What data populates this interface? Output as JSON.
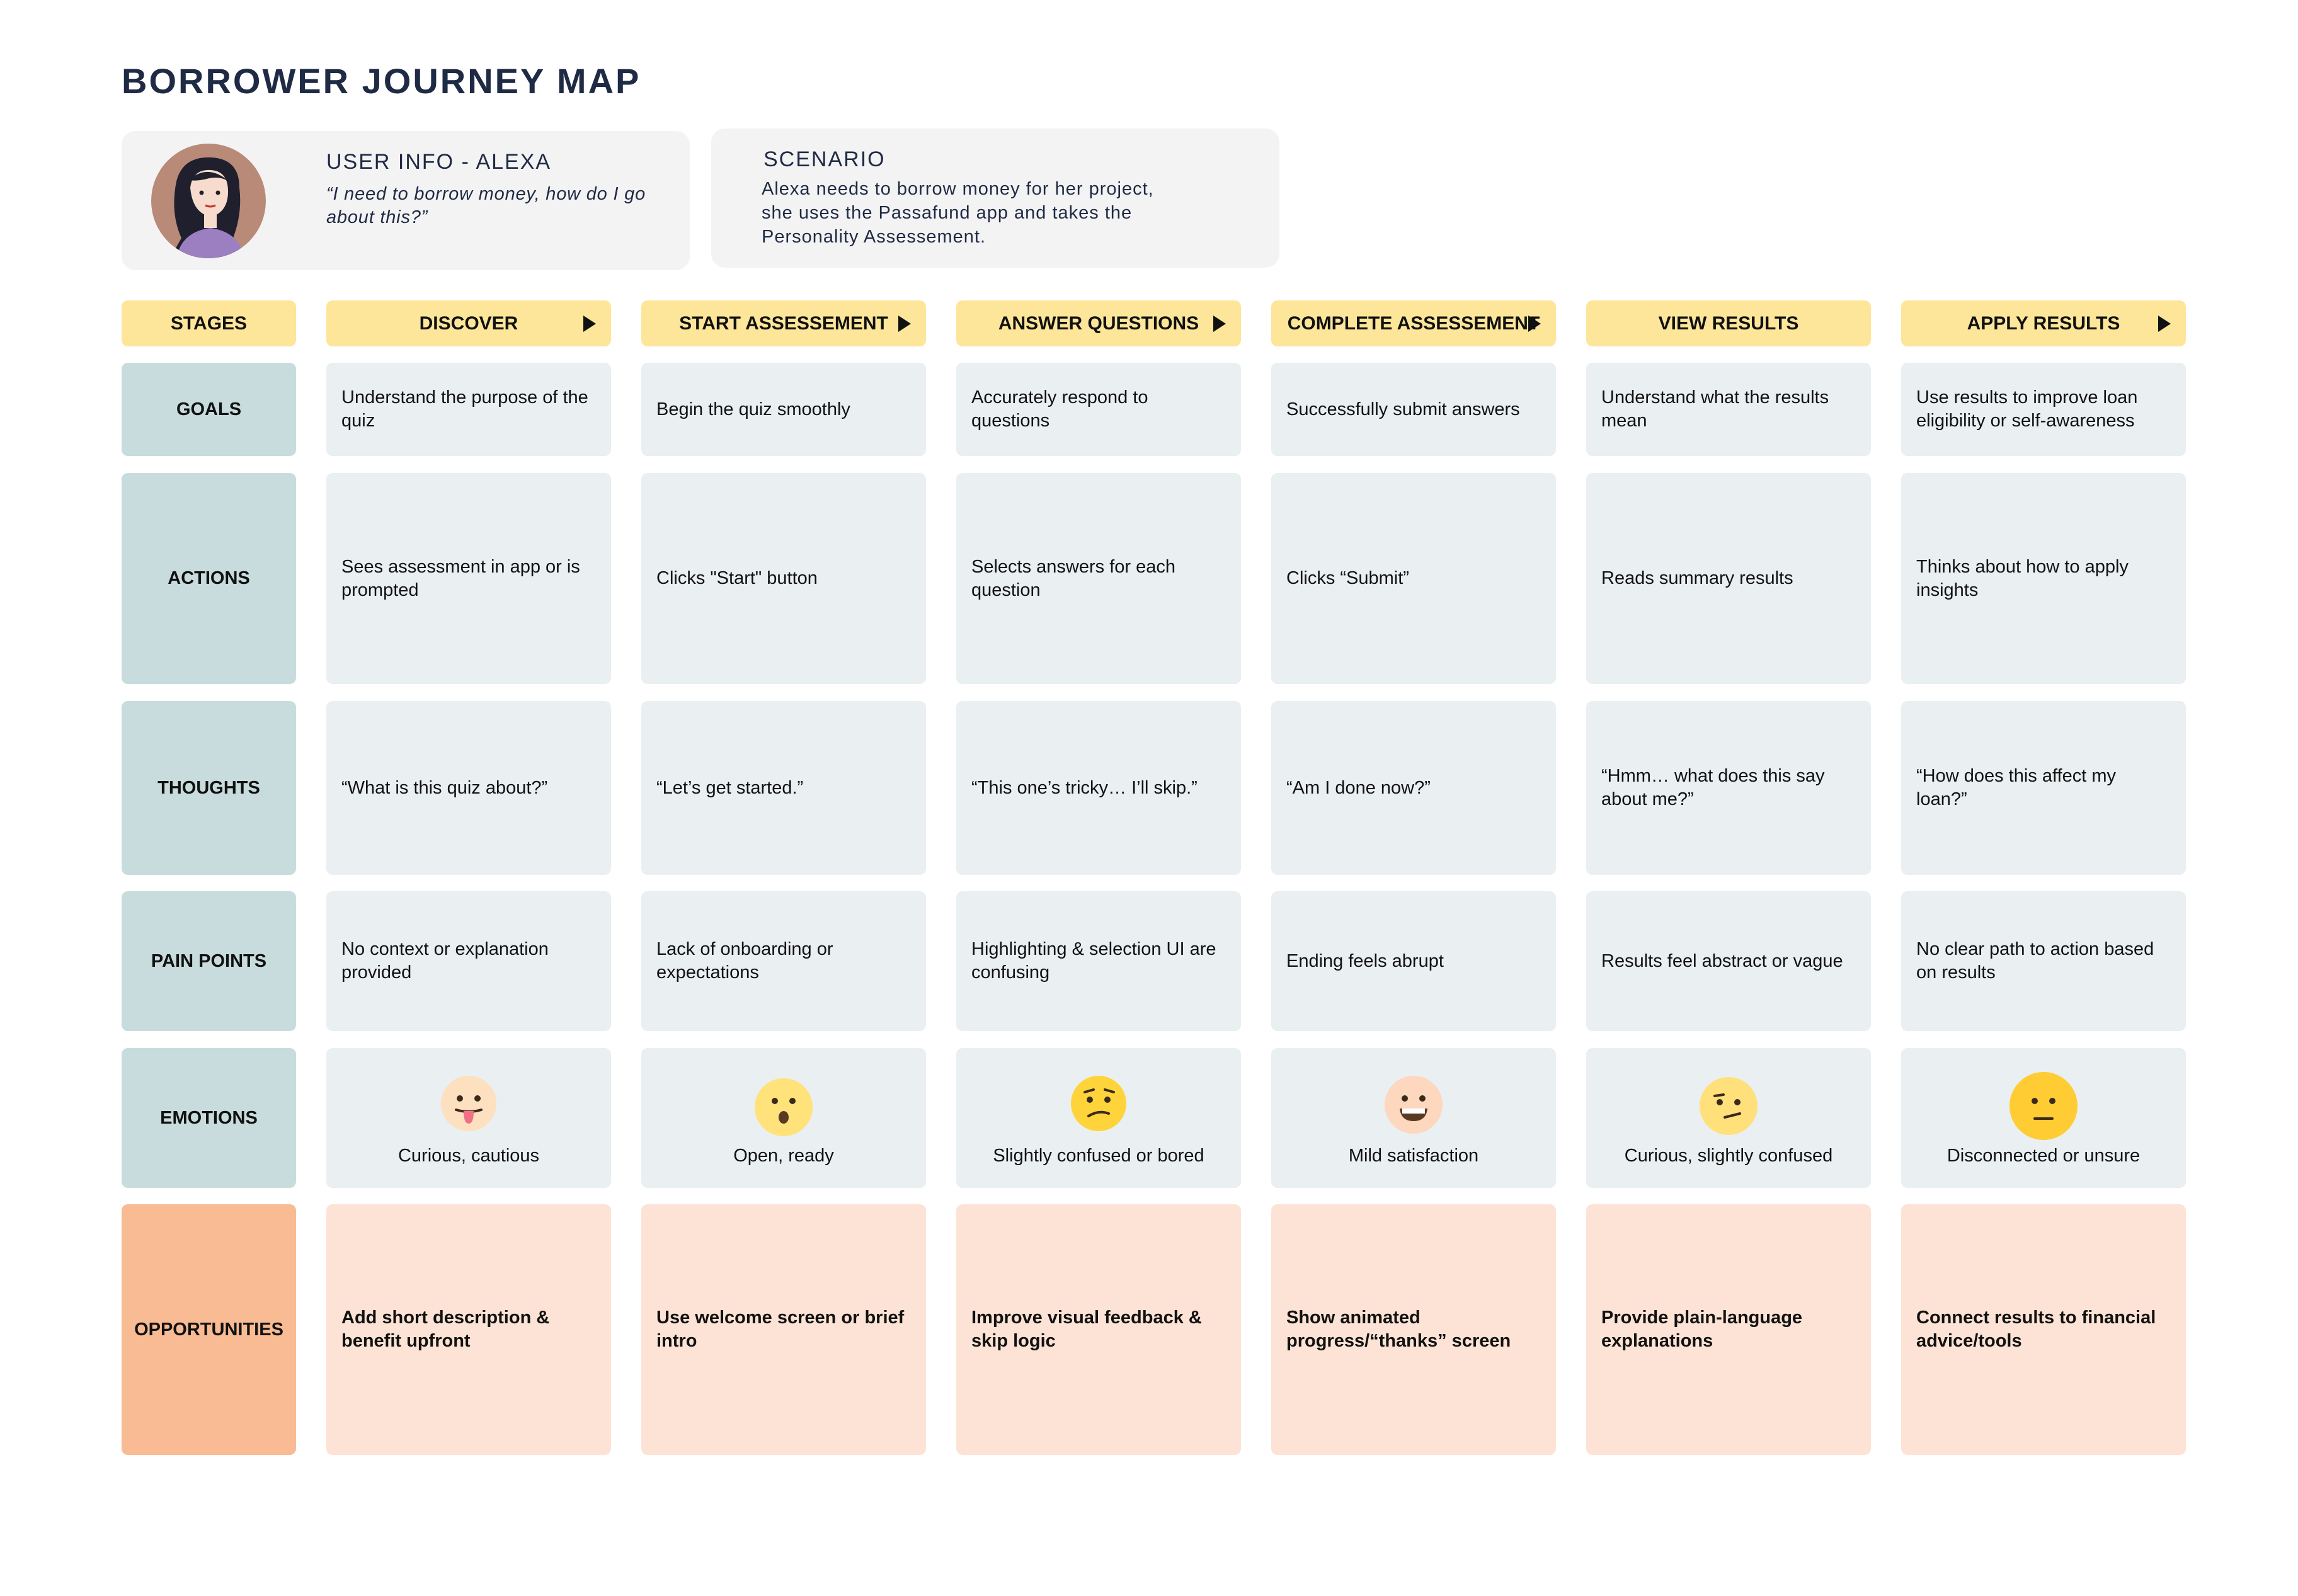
{
  "title": "BORROWER JOURNEY MAP",
  "user_info": {
    "heading": "USER INFO - ALEXA",
    "quote": "“I need to borrow money, how do I go about this?”"
  },
  "scenario": {
    "heading": "SCENARIO",
    "text": "Alexa needs to borrow money for her project, she uses the Passafund app and takes the Personality Assessement."
  },
  "stages_label": "STAGES",
  "stages": [
    "DISCOVER",
    "START ASSESSEMENT",
    "ANSWER QUESTIONS",
    "COMPLETE ASSESSEMENT",
    "VIEW RESULTS",
    "APPLY RESULTS"
  ],
  "row_labels": {
    "goals": "GOALS",
    "actions": "ACTIONS",
    "thoughts": "THOUGHTS",
    "pain_points": "PAIN POINTS",
    "emotions": "EMOTIONS",
    "opportunities": "OPPORTUNITIES"
  },
  "goals": [
    "Understand the purpose of the quiz",
    "Begin the quiz smoothly",
    "Accurately respond to questions",
    "Successfully submit answers",
    "Understand what the results mean",
    "Use results to improve loan eligibility or self-awareness"
  ],
  "actions": [
    "Sees assessment in app or is prompted",
    "Clicks \"Start\" button",
    "Selects answers for each question",
    "Clicks “Submit”",
    "Reads summary results",
    "Thinks about how to apply insights"
  ],
  "thoughts": [
    "“What is this quiz about?”",
    "“Let’s get started.”",
    "“This one’s tricky… I’ll skip.”",
    "“Am I done now?”",
    "“Hmm… what does this say about me?”",
    "“How does this affect my loan?”"
  ],
  "pain_points": [
    "No context or explanation provided",
    "Lack of onboarding or expectations",
    "Highlighting & selection UI are confusing",
    "Ending feels abrupt",
    "Results feel abstract or vague",
    "No clear path to action based on results"
  ],
  "emotions": [
    {
      "label": "Curious, cautious",
      "icon": "tongue-out-emoji-icon",
      "color": "#fde0bf"
    },
    {
      "label": "Open, ready",
      "icon": "surprised-emoji-icon",
      "color": "#ffe27a"
    },
    {
      "label": "Slightly confused or bored",
      "icon": "confused-emoji-icon",
      "color": "#ffd43b"
    },
    {
      "label": "Mild satisfaction",
      "icon": "grinning-emoji-icon",
      "color": "#fdd7be"
    },
    {
      "label": "Curious, slightly confused",
      "icon": "skeptical-emoji-icon",
      "color": "#ffe07a"
    },
    {
      "label": "Disconnected or unsure",
      "icon": "neutral-emoji-icon",
      "color": "#ffcc33"
    }
  ],
  "opportunities": [
    "Add short description & benefit upfront",
    "Use welcome screen or brief intro",
    "Improve visual feedback & skip logic",
    "Show animated progress/“thanks” screen",
    "Provide plain-language explanations",
    "Connect results to financial advice/tools"
  ],
  "colors": {
    "stage_header": "#fde699",
    "row_label": "#c8dcdd",
    "opportunity_label": "#f8bb93",
    "cell": "#eaeff1",
    "opportunity_cell": "#fde3d5"
  }
}
